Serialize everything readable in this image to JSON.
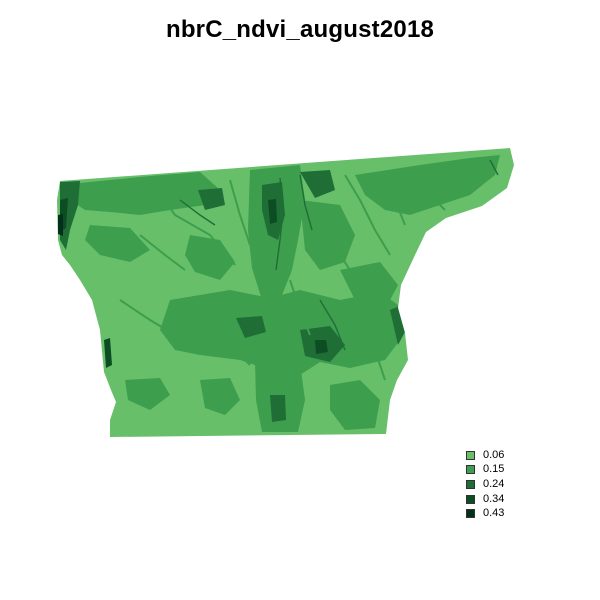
{
  "title": "nbrC_ndvi_august2018",
  "colors": {
    "base": "#67bf6a",
    "medium": "#3d9e4e",
    "dark": "#1f6e35",
    "darker": "#0c4d23",
    "darkest": "#02301a"
  },
  "legend": {
    "items": [
      {
        "label": "0.06",
        "color": "#67bf6a"
      },
      {
        "label": "0.15",
        "color": "#3d9e4e"
      },
      {
        "label": "0.24",
        "color": "#1f6e35"
      },
      {
        "label": "0.34",
        "color": "#0c4d23"
      },
      {
        "label": "0.43",
        "color": "#02301a"
      }
    ]
  }
}
